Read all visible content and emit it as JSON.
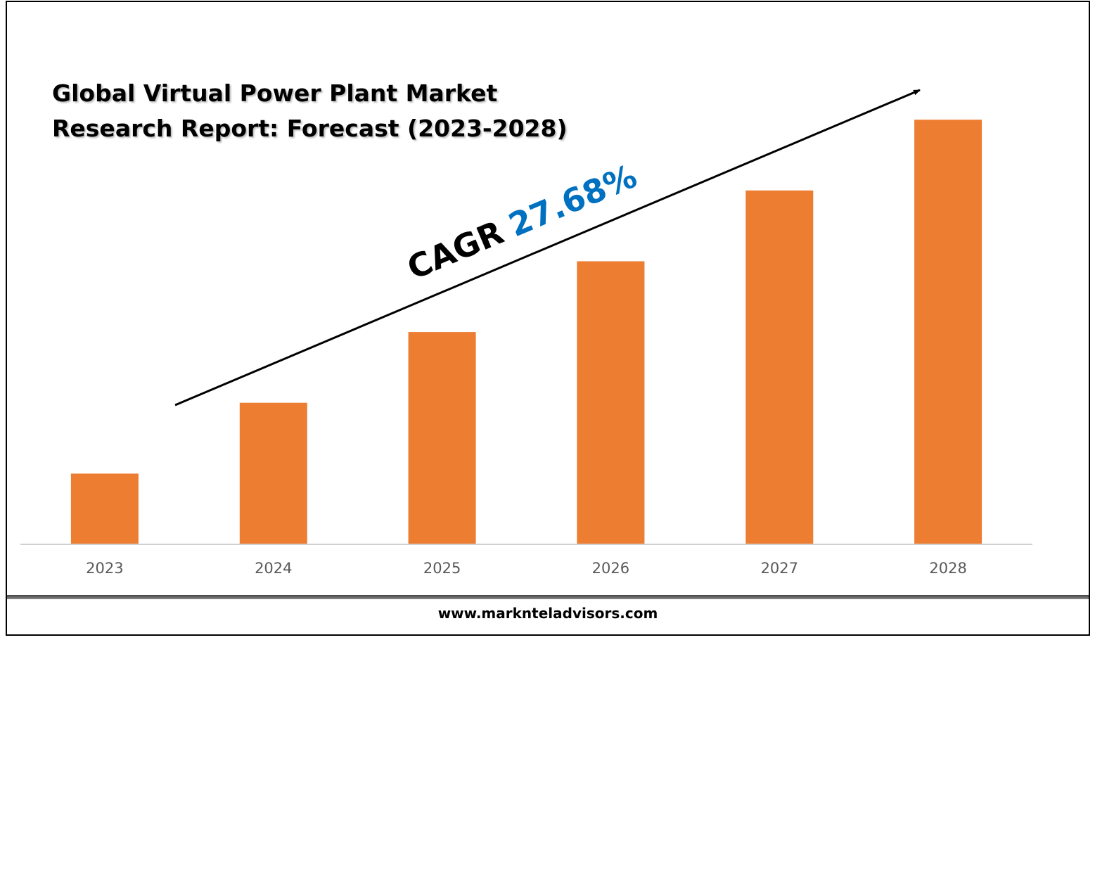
{
  "chart_data": {
    "type": "bar",
    "title_lines": [
      "Global Virtual Power Plant Market",
      "Research Report: Forecast (2023-2028)"
    ],
    "categories": [
      "2023",
      "2024",
      "2025",
      "2026",
      "2027",
      "2028"
    ],
    "values": [
      1,
      2,
      3,
      4,
      5,
      6
    ],
    "ylim": [
      0,
      6.3
    ],
    "grid": false,
    "legend": "none",
    "bar_color": "#ED7D31",
    "annotation": {
      "label": "CAGR",
      "value": "27.68%",
      "label_color": "#000000",
      "value_color": "#0070C0"
    }
  },
  "footer": {
    "url": "www.marknteladvisors.com"
  }
}
